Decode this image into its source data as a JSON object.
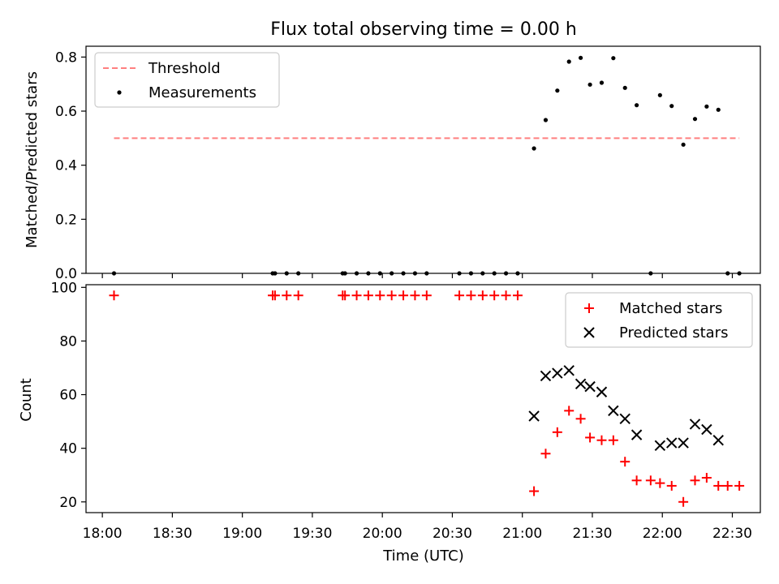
{
  "chart_data": [
    {
      "type": "scatter",
      "title": "Flux total observing time = 0.00 h",
      "xlabel": "",
      "ylabel": "Matched/Predicted stars",
      "xlim": [
        "17:53",
        "22:42"
      ],
      "ylim": [
        0,
        0.84
      ],
      "yticks": [
        0,
        0.2,
        0.4,
        0.6,
        0.8
      ],
      "ytick_labels": [
        "0.0",
        "0.2",
        "0.4",
        "0.6",
        "0.8"
      ],
      "legend_position": "top-left",
      "threshold": {
        "name": "Threshold",
        "value": 0.5,
        "x_start": "18:05",
        "x_end": "22:33",
        "color": "#ff7f7f",
        "style": "dashed"
      },
      "series": [
        {
          "name": "Measurements",
          "color": "#000000",
          "marker": "dot",
          "points": [
            [
              "18:05",
              0
            ],
            [
              "19:13",
              0
            ],
            [
              "19:14",
              0
            ],
            [
              "19:19",
              0
            ],
            [
              "19:24",
              0
            ],
            [
              "19:43",
              0
            ],
            [
              "19:44",
              0
            ],
            [
              "19:49",
              0
            ],
            [
              "19:54",
              0
            ],
            [
              "19:59",
              0
            ],
            [
              "20:04",
              0
            ],
            [
              "20:09",
              0
            ],
            [
              "20:14",
              0
            ],
            [
              "20:19",
              0
            ],
            [
              "20:33",
              0
            ],
            [
              "20:38",
              0
            ],
            [
              "20:43",
              0
            ],
            [
              "20:48",
              0
            ],
            [
              "20:53",
              0
            ],
            [
              "20:58",
              0
            ],
            [
              "21:05",
              0.462
            ],
            [
              "21:10",
              0.567
            ],
            [
              "21:15",
              0.676
            ],
            [
              "21:20",
              0.783
            ],
            [
              "21:25",
              0.797
            ],
            [
              "21:29",
              0.698
            ],
            [
              "21:34",
              0.705
            ],
            [
              "21:39",
              0.796
            ],
            [
              "21:44",
              0.686
            ],
            [
              "21:49",
              0.622
            ],
            [
              "21:55",
              0
            ],
            [
              "21:59",
              0.659
            ],
            [
              "22:04",
              0.619
            ],
            [
              "22:09",
              0.476
            ],
            [
              "22:14",
              0.571
            ],
            [
              "22:19",
              0.617
            ],
            [
              "22:24",
              0.605
            ],
            [
              "22:28",
              0
            ],
            [
              "22:33",
              0
            ]
          ]
        }
      ]
    },
    {
      "type": "scatter",
      "title": "",
      "xlabel": "Time (UTC)",
      "ylabel": "Count",
      "xlim": [
        "17:53",
        "22:42"
      ],
      "ylim": [
        16,
        101
      ],
      "yticks": [
        20,
        40,
        60,
        80,
        100
      ],
      "ytick_labels": [
        "20",
        "40",
        "60",
        "80",
        "100"
      ],
      "xticks": [
        "18:00",
        "18:30",
        "19:00",
        "19:30",
        "20:00",
        "20:30",
        "21:00",
        "21:30",
        "22:00",
        "22:30"
      ],
      "legend_position": "top-right",
      "series": [
        {
          "name": "Matched stars",
          "color": "#ff0000",
          "marker": "plus",
          "points": [
            [
              "18:05",
              97
            ],
            [
              "19:13",
              97
            ],
            [
              "19:14",
              97
            ],
            [
              "19:19",
              97
            ],
            [
              "19:24",
              97
            ],
            [
              "19:43",
              97
            ],
            [
              "19:44",
              97
            ],
            [
              "19:49",
              97
            ],
            [
              "19:54",
              97
            ],
            [
              "19:59",
              97
            ],
            [
              "20:04",
              97
            ],
            [
              "20:09",
              97
            ],
            [
              "20:14",
              97
            ],
            [
              "20:19",
              97
            ],
            [
              "20:33",
              97
            ],
            [
              "20:38",
              97
            ],
            [
              "20:43",
              97
            ],
            [
              "20:48",
              97
            ],
            [
              "20:53",
              97
            ],
            [
              "20:58",
              97
            ],
            [
              "21:05",
              24
            ],
            [
              "21:10",
              38
            ],
            [
              "21:15",
              46
            ],
            [
              "21:20",
              54
            ],
            [
              "21:25",
              51
            ],
            [
              "21:29",
              44
            ],
            [
              "21:34",
              43
            ],
            [
              "21:39",
              43
            ],
            [
              "21:44",
              35
            ],
            [
              "21:49",
              28
            ],
            [
              "21:55",
              28
            ],
            [
              "21:59",
              27
            ],
            [
              "22:04",
              26
            ],
            [
              "22:09",
              20
            ],
            [
              "22:14",
              28
            ],
            [
              "22:19",
              29
            ],
            [
              "22:24",
              26
            ],
            [
              "22:28",
              26
            ],
            [
              "22:33",
              26
            ]
          ]
        },
        {
          "name": "Predicted stars",
          "color": "#000000",
          "marker": "x",
          "points": [
            [
              "21:05",
              52
            ],
            [
              "21:10",
              67
            ],
            [
              "21:15",
              68
            ],
            [
              "21:20",
              69
            ],
            [
              "21:25",
              64
            ],
            [
              "21:29",
              63
            ],
            [
              "21:34",
              61
            ],
            [
              "21:39",
              54
            ],
            [
              "21:44",
              51
            ],
            [
              "21:49",
              45
            ],
            [
              "21:59",
              41
            ],
            [
              "22:04",
              42
            ],
            [
              "22:09",
              42
            ],
            [
              "22:14",
              49
            ],
            [
              "22:19",
              47
            ],
            [
              "22:24",
              43
            ]
          ]
        }
      ]
    }
  ]
}
